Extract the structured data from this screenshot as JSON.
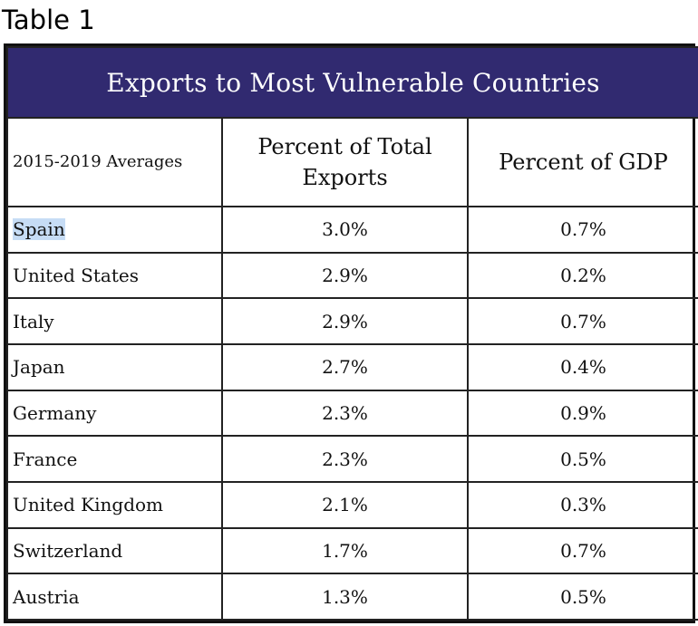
{
  "caption": "Table 1",
  "table": {
    "title": "Exports to Most Vulnerable Countries",
    "row_header": "2015-2019 Averages",
    "columns": [
      "Percent of Total Exports",
      "Percent of GDP"
    ],
    "rows": [
      {
        "country": "Spain",
        "percent_exports": "3.0%",
        "percent_gdp": "0.7%",
        "selected": true
      },
      {
        "country": "United States",
        "percent_exports": "2.9%",
        "percent_gdp": "0.2%"
      },
      {
        "country": "Italy",
        "percent_exports": "2.9%",
        "percent_gdp": "0.7%"
      },
      {
        "country": "Japan",
        "percent_exports": "2.7%",
        "percent_gdp": "0.4%"
      },
      {
        "country": "Germany",
        "percent_exports": "2.3%",
        "percent_gdp": "0.9%"
      },
      {
        "country": "France",
        "percent_exports": "2.3%",
        "percent_gdp": "0.5%"
      },
      {
        "country": "United Kingdom",
        "percent_exports": "2.1%",
        "percent_gdp": "0.3%"
      },
      {
        "country": "Switzerland",
        "percent_exports": "1.7%",
        "percent_gdp": "0.7%"
      },
      {
        "country": "Austria",
        "percent_exports": "1.3%",
        "percent_gdp": "0.5%"
      }
    ]
  },
  "colors": {
    "title_background": "#312a70",
    "title_text": "#ffffff",
    "selection_highlight": "#c6dcf5",
    "border": "#222222"
  }
}
